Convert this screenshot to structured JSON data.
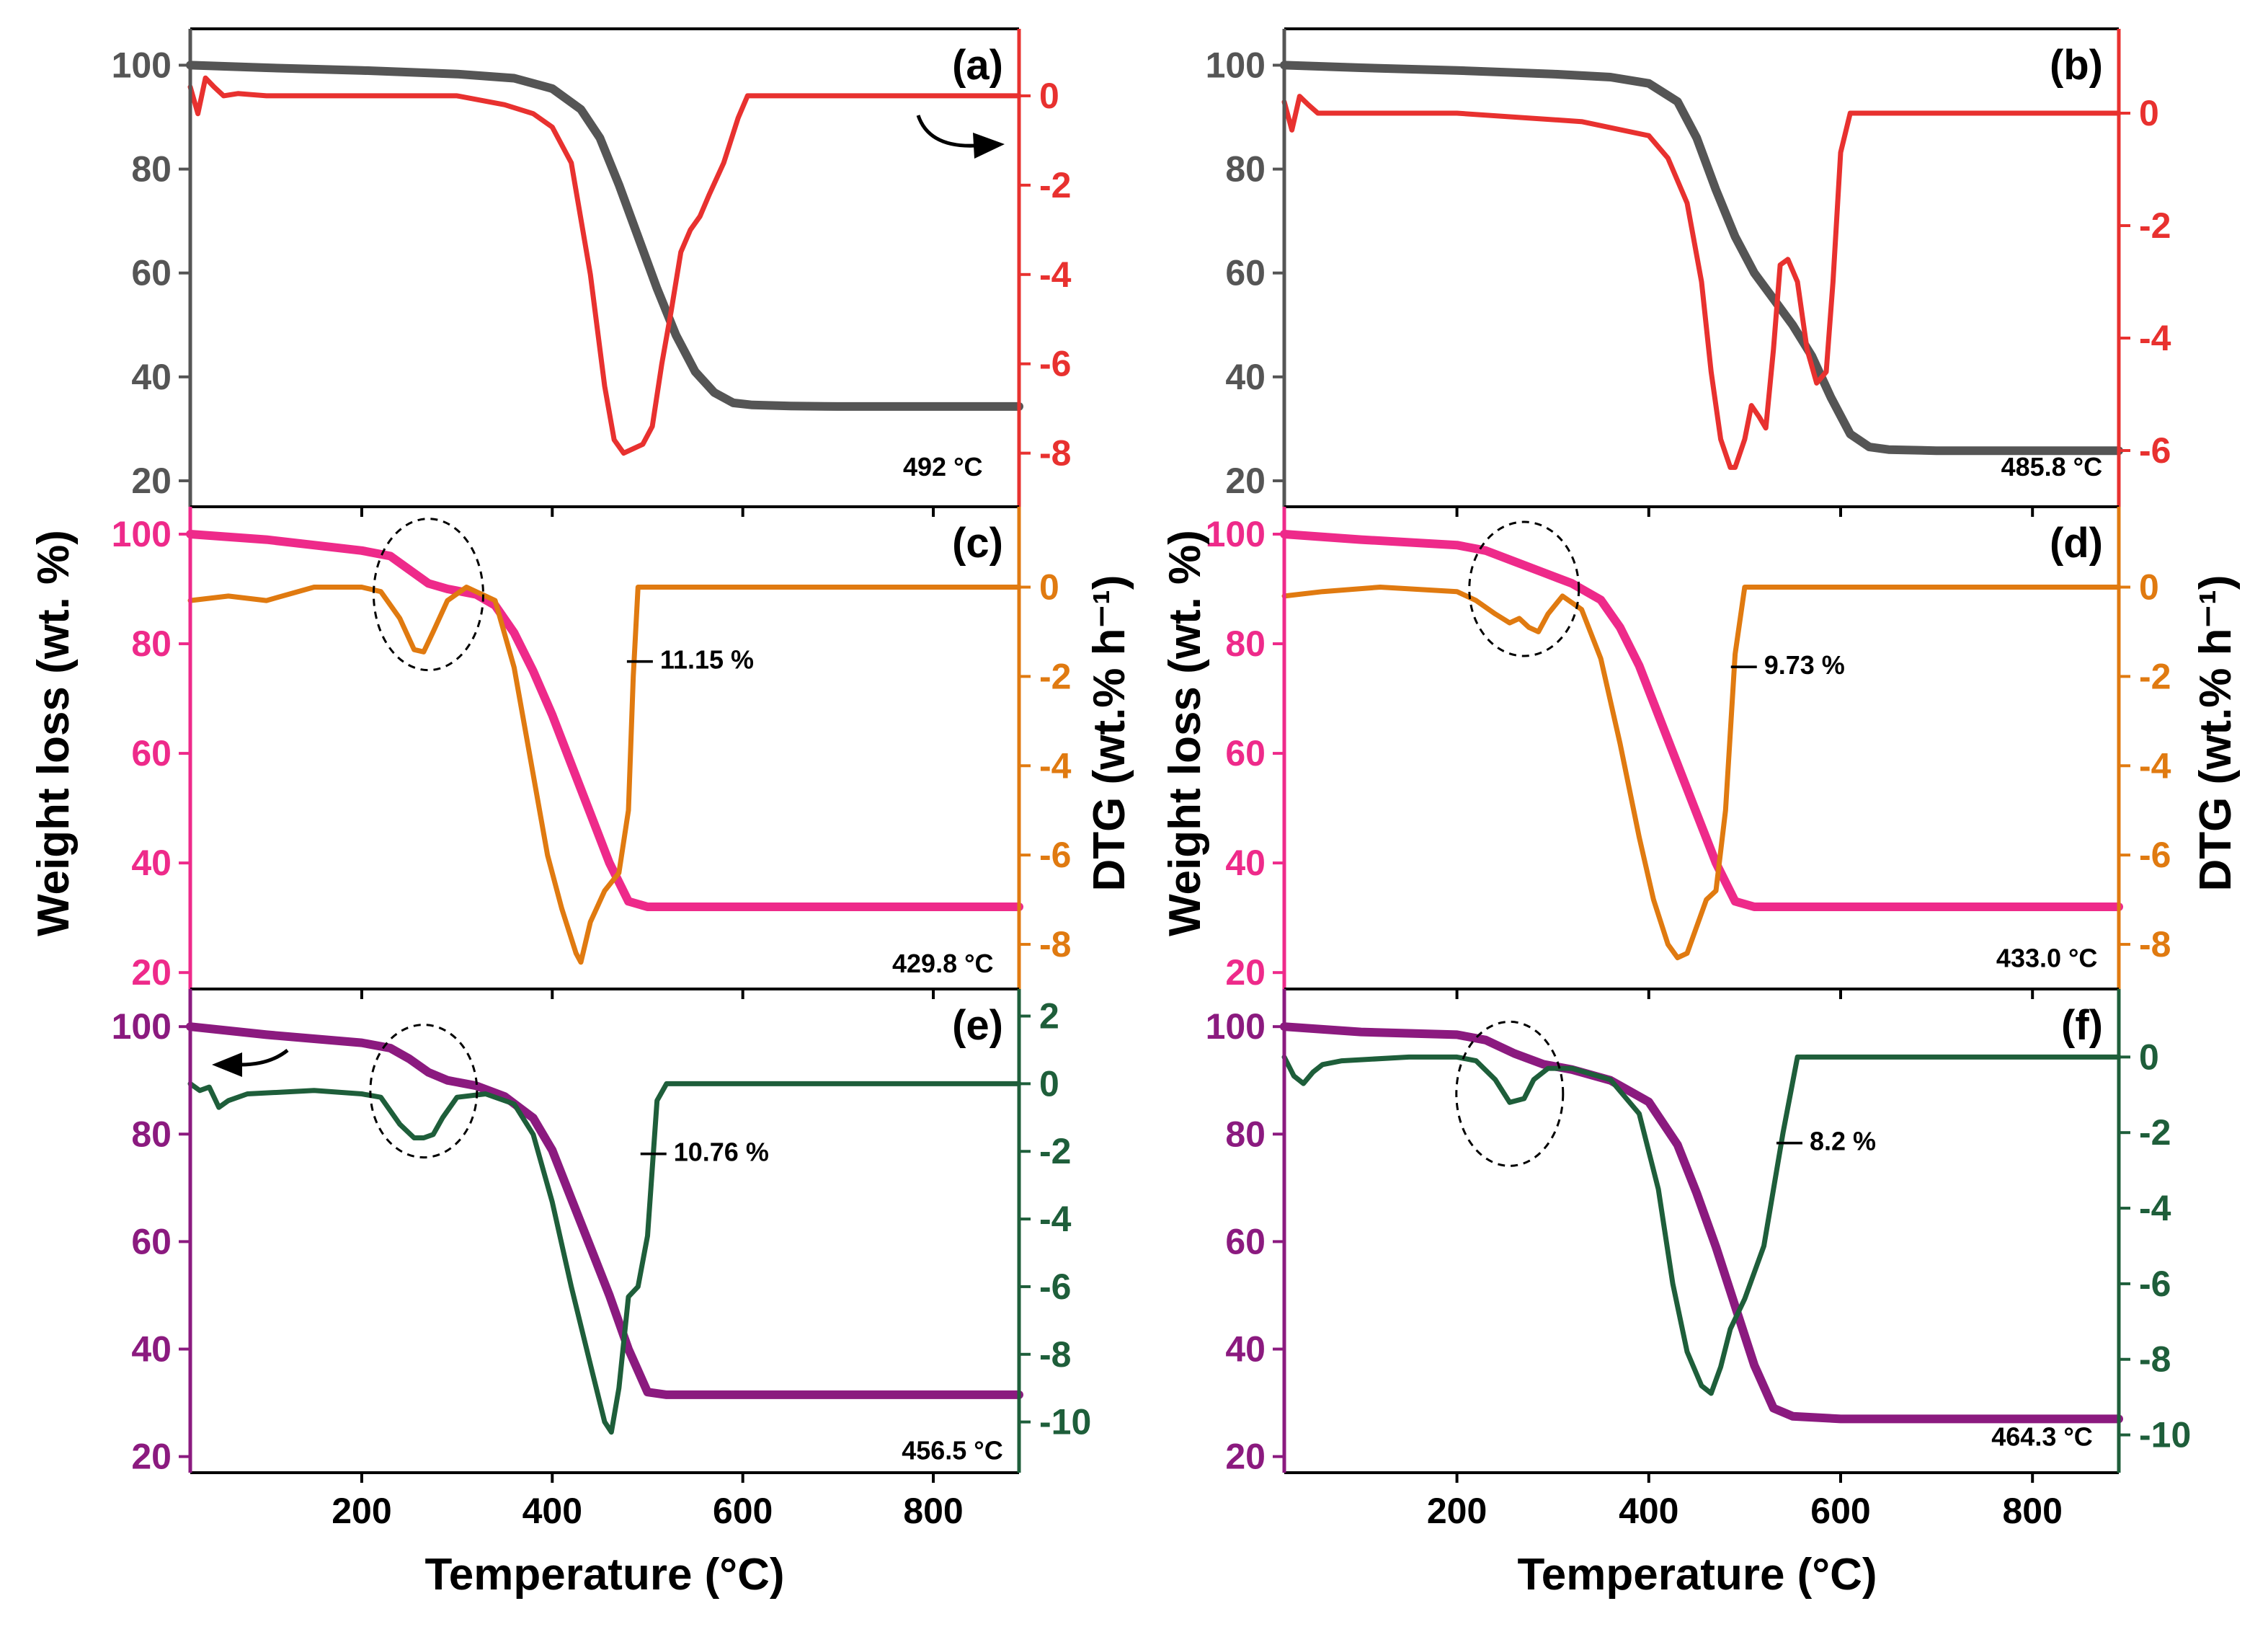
{
  "figure": {
    "xlabel": "Temperature (°C)",
    "ylabel_left": "Weight loss (wt. %)",
    "ylabel_right": "DTG (wt.% h⁻¹)"
  },
  "chart_data": [
    {
      "type": "line",
      "label": "(a)",
      "xlim": [
        20,
        890
      ],
      "ylim_left": [
        15,
        107
      ],
      "ylim_right": [
        -9.2,
        1.5
      ],
      "xticks": [
        200,
        400,
        600,
        800
      ],
      "yticks_left": [
        20,
        40,
        60,
        80,
        100
      ],
      "yticks_right": [
        0,
        -2,
        -4,
        -6,
        -8
      ],
      "left_color": "#555555",
      "right_color": "#e8312f",
      "series": [
        {
          "axis": "left",
          "color": "#555555",
          "x": [
            20,
            100,
            200,
            300,
            360,
            400,
            430,
            450,
            470,
            490,
            510,
            530,
            550,
            570,
            590,
            610,
            650,
            700,
            800,
            890
          ],
          "y": [
            100,
            99.5,
            99,
            98.3,
            97.5,
            95.5,
            91.5,
            86,
            77,
            67,
            57,
            48,
            41,
            37,
            35,
            34.6,
            34.4,
            34.3,
            34.3,
            34.3
          ]
        },
        {
          "axis": "right",
          "color": "#e8312f",
          "x": [
            20,
            28,
            36,
            45,
            55,
            70,
            100,
            200,
            300,
            350,
            380,
            400,
            420,
            440,
            455,
            465,
            475,
            485,
            495,
            505,
            515,
            525,
            535,
            545,
            555,
            565,
            580,
            595,
            605,
            620,
            700,
            800,
            890
          ],
          "y": [
            0.2,
            -0.4,
            0.4,
            0.2,
            0,
            0.05,
            0,
            0,
            0,
            -0.2,
            -0.4,
            -0.7,
            -1.5,
            -4,
            -6.5,
            -7.7,
            -8.0,
            -7.9,
            -7.8,
            -7.4,
            -6,
            -4.8,
            -3.5,
            -3,
            -2.7,
            -2.2,
            -1.5,
            -0.5,
            0,
            0,
            0,
            0,
            0
          ]
        }
      ],
      "annotations": [
        "492 °C"
      ]
    },
    {
      "type": "line",
      "label": "(b)",
      "xlim": [
        20,
        890
      ],
      "ylim_left": [
        15,
        107
      ],
      "ylim_right": [
        -7.0,
        1.5
      ],
      "xticks": [
        200,
        400,
        600,
        800
      ],
      "yticks_left": [
        20,
        40,
        60,
        80,
        100
      ],
      "yticks_right": [
        0,
        -2,
        -4,
        -6
      ],
      "left_color": "#555555",
      "right_color": "#e8312f",
      "series": [
        {
          "axis": "left",
          "color": "#555555",
          "x": [
            20,
            100,
            200,
            300,
            360,
            400,
            430,
            450,
            470,
            490,
            510,
            530,
            550,
            570,
            590,
            610,
            630,
            650,
            700,
            800,
            890
          ],
          "y": [
            100,
            99.5,
            99,
            98.3,
            97.7,
            96.5,
            93,
            86,
            76,
            67,
            60,
            55,
            50,
            44,
            36,
            29,
            26.5,
            26,
            25.8,
            25.8,
            25.8
          ],
          "note": ""
        },
        {
          "axis": "right",
          "color": "#e8312f",
          "x": [
            20,
            28,
            36,
            45,
            55,
            80,
            200,
            330,
            400,
            420,
            440,
            455,
            465,
            475,
            485,
            490,
            500,
            507,
            515,
            522,
            530,
            537,
            545,
            555,
            565,
            575,
            585,
            592,
            600,
            610,
            650,
            800,
            890
          ],
          "y": [
            0.2,
            -0.3,
            0.3,
            0.15,
            0,
            0,
            0,
            -0.15,
            -0.4,
            -0.8,
            -1.6,
            -3,
            -4.6,
            -5.8,
            -6.3,
            -6.3,
            -5.8,
            -5.2,
            -5.4,
            -5.6,
            -4.2,
            -2.7,
            -2.6,
            -3,
            -4.2,
            -4.8,
            -4.6,
            -3,
            -0.7,
            0,
            0,
            0,
            0
          ]
        }
      ],
      "annotations": [
        "485.8 °C"
      ]
    },
    {
      "type": "line",
      "label": "(c)",
      "xlim": [
        20,
        890
      ],
      "ylim_left": [
        17,
        105
      ],
      "ylim_right": [
        -9.0,
        1.8
      ],
      "xticks": [
        200,
        400,
        600,
        800
      ],
      "yticks_left": [
        20,
        40,
        60,
        80,
        100
      ],
      "yticks_right": [
        0,
        -2,
        -4,
        -6,
        -8
      ],
      "left_color": "#ee2a8a",
      "right_color": "#e07a10",
      "series": [
        {
          "axis": "left",
          "color": "#ee2a8a",
          "x": [
            20,
            100,
            200,
            230,
            250,
            270,
            290,
            320,
            340,
            360,
            380,
            400,
            420,
            440,
            460,
            480,
            500,
            600,
            800,
            890
          ],
          "y": [
            100,
            99,
            97,
            96,
            93.5,
            91,
            90,
            89,
            87,
            82,
            75,
            67,
            58,
            49,
            40,
            33,
            32,
            32,
            32,
            32
          ]
        },
        {
          "axis": "right",
          "color": "#e07a10",
          "x": [
            20,
            60,
            100,
            150,
            200,
            220,
            240,
            255,
            265,
            275,
            290,
            310,
            340,
            360,
            380,
            395,
            410,
            425,
            430,
            440,
            455,
            470,
            480,
            485,
            490,
            500,
            600,
            800,
            890
          ],
          "y": [
            -0.3,
            -0.2,
            -0.3,
            0,
            0,
            -0.1,
            -0.7,
            -1.4,
            -1.45,
            -1.0,
            -0.3,
            0,
            -0.3,
            -1.8,
            -4.2,
            -6,
            -7.2,
            -8.2,
            -8.4,
            -7.5,
            -6.8,
            -6.4,
            -5,
            -2,
            0,
            0,
            0,
            0,
            0
          ]
        }
      ],
      "annotations": [
        "— 11.15 %",
        "429.8 °C"
      ]
    },
    {
      "type": "line",
      "label": "(d)",
      "xlim": [
        20,
        890
      ],
      "ylim_left": [
        17,
        105
      ],
      "ylim_right": [
        -9.0,
        1.8
      ],
      "xticks": [
        200,
        400,
        600,
        800
      ],
      "yticks_left": [
        20,
        40,
        60,
        80,
        100
      ],
      "yticks_right": [
        0,
        -2,
        -4,
        -6,
        -8
      ],
      "left_color": "#ee2a8a",
      "right_color": "#e07a10",
      "series": [
        {
          "axis": "left",
          "color": "#ee2a8a",
          "x": [
            20,
            100,
            200,
            230,
            260,
            290,
            320,
            350,
            370,
            390,
            410,
            430,
            450,
            470,
            490,
            510,
            600,
            800,
            890
          ],
          "y": [
            100,
            99,
            98,
            97,
            95,
            93,
            91,
            88,
            83,
            76,
            67,
            58,
            49,
            40,
            33,
            32,
            32,
            32,
            32
          ]
        },
        {
          "axis": "right",
          "color": "#e07a10",
          "x": [
            20,
            60,
            120,
            200,
            220,
            240,
            255,
            265,
            275,
            285,
            295,
            310,
            330,
            350,
            370,
            390,
            405,
            420,
            430,
            440,
            450,
            460,
            470,
            480,
            490,
            500,
            600,
            800,
            890
          ],
          "y": [
            -0.2,
            -0.1,
            0,
            -0.1,
            -0.3,
            -0.6,
            -0.8,
            -0.7,
            -0.9,
            -1.0,
            -0.6,
            -0.2,
            -0.5,
            -1.6,
            -3.5,
            -5.6,
            -7.0,
            -8.0,
            -8.3,
            -8.2,
            -7.6,
            -7.0,
            -6.8,
            -5,
            -1.5,
            0,
            0,
            0,
            0
          ]
        }
      ],
      "annotations": [
        "— 9.73 %",
        "433.0 °C"
      ]
    },
    {
      "type": "line",
      "label": "(e)",
      "xlim": [
        20,
        890
      ],
      "ylim_left": [
        17,
        107
      ],
      "ylim_right": [
        -11.5,
        2.8
      ],
      "xticks": [
        200,
        400,
        600,
        800
      ],
      "yticks_left": [
        20,
        40,
        60,
        80,
        100
      ],
      "yticks_right": [
        2,
        0,
        -2,
        -4,
        -6,
        -8,
        -10
      ],
      "left_color": "#8b1a7f",
      "right_color": "#1e5e3a",
      "series": [
        {
          "axis": "left",
          "color": "#8b1a7f",
          "x": [
            20,
            100,
            200,
            230,
            250,
            270,
            290,
            320,
            350,
            380,
            400,
            420,
            440,
            460,
            480,
            500,
            520,
            600,
            800,
            890
          ],
          "y": [
            100,
            98.5,
            97,
            96,
            94,
            91.5,
            90,
            89,
            87,
            83,
            77,
            68,
            59,
            50,
            40,
            32,
            31.5,
            31.5,
            31.5,
            31.5
          ]
        },
        {
          "axis": "right",
          "color": "#1e5e3a",
          "x": [
            20,
            30,
            40,
            50,
            60,
            80,
            150,
            200,
            220,
            240,
            255,
            265,
            275,
            285,
            300,
            330,
            360,
            380,
            400,
            420,
            440,
            455,
            462,
            470,
            480,
            490,
            500,
            510,
            520,
            600,
            800,
            890
          ],
          "y": [
            0,
            -0.2,
            -0.1,
            -0.7,
            -0.5,
            -0.3,
            -0.2,
            -0.3,
            -0.4,
            -1.2,
            -1.6,
            -1.6,
            -1.5,
            -1.0,
            -0.4,
            -0.3,
            -0.6,
            -1.5,
            -3.5,
            -6,
            -8.3,
            -10.0,
            -10.3,
            -9.0,
            -6.3,
            -6,
            -4.5,
            -0.5,
            0,
            0,
            0,
            0
          ]
        }
      ],
      "annotations": [
        "— 10.76 %",
        "456.5 °C"
      ]
    },
    {
      "type": "line",
      "label": "(f)",
      "xlim": [
        20,
        890
      ],
      "ylim_left": [
        17,
        107
      ],
      "ylim_right": [
        -11.0,
        1.8
      ],
      "xticks": [
        200,
        400,
        600,
        800
      ],
      "yticks_left": [
        20,
        40,
        60,
        80,
        100
      ],
      "yticks_right": [
        0,
        -2,
        -4,
        -6,
        -8,
        -10
      ],
      "left_color": "#8b1a7f",
      "right_color": "#1e5e3a",
      "series": [
        {
          "axis": "left",
          "color": "#8b1a7f",
          "x": [
            20,
            100,
            200,
            230,
            260,
            290,
            320,
            360,
            400,
            430,
            450,
            470,
            490,
            510,
            530,
            550,
            600,
            800,
            890
          ],
          "y": [
            100,
            99,
            98.5,
            97.5,
            95,
            93,
            92,
            90,
            86,
            78,
            69,
            59,
            48,
            37,
            29,
            27.5,
            27,
            27,
            27
          ]
        },
        {
          "axis": "right",
          "color": "#1e5e3a",
          "x": [
            20,
            30,
            40,
            50,
            60,
            80,
            150,
            200,
            220,
            240,
            255,
            270,
            280,
            295,
            320,
            360,
            390,
            410,
            425,
            440,
            455,
            465,
            475,
            485,
            500,
            520,
            540,
            555,
            600,
            800,
            890
          ],
          "y": [
            0,
            -0.5,
            -0.7,
            -0.4,
            -0.2,
            -0.1,
            0,
            0,
            -0.1,
            -0.6,
            -1.2,
            -1.1,
            -0.6,
            -0.3,
            -0.3,
            -0.6,
            -1.5,
            -3.5,
            -6,
            -7.8,
            -8.7,
            -8.9,
            -8.2,
            -7.2,
            -6.4,
            -5,
            -2,
            0,
            0,
            0,
            0
          ]
        }
      ],
      "annotations": [
        "— 8.2 %",
        "464.3 °C"
      ]
    }
  ]
}
